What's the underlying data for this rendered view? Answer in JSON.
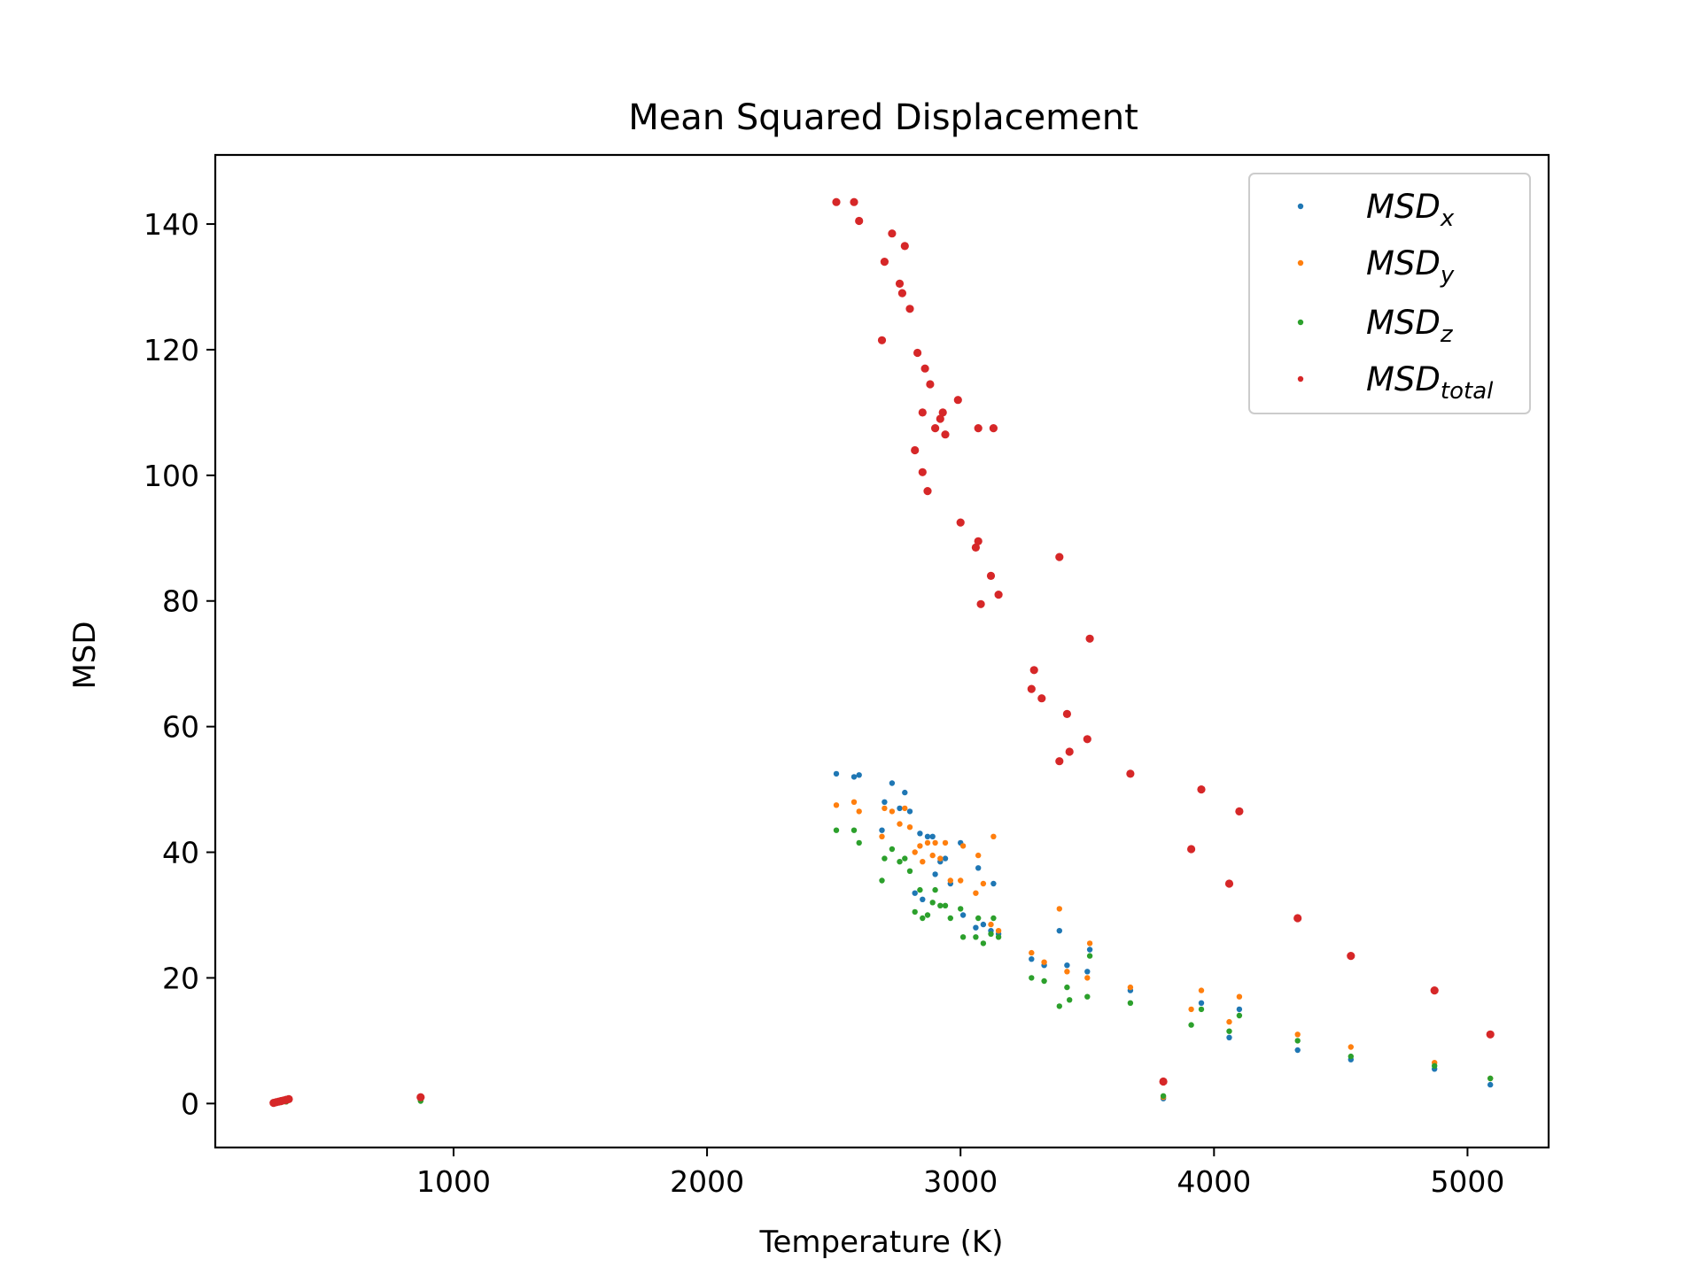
{
  "chart_data": {
    "type": "scatter",
    "title": "Mean Squared Displacement",
    "xlabel": "Temperature (K)",
    "ylabel": "MSD",
    "xlim": [
      60,
      5320
    ],
    "ylim": [
      -7,
      151
    ],
    "xticks": [
      1000,
      2000,
      3000,
      4000,
      5000
    ],
    "yticks": [
      0,
      20,
      40,
      60,
      80,
      100,
      120,
      140
    ],
    "grid": false,
    "legend_position": "top-right",
    "series": [
      {
        "name": "MSD_x",
        "legend_main": "MSD",
        "legend_sub": "x",
        "color": "#1f77b4",
        "points": [
          [
            300,
            0.1
          ],
          [
            320,
            0.2
          ],
          [
            340,
            0.3
          ],
          [
            870,
            0.5
          ],
          [
            2510,
            52.5
          ],
          [
            2580,
            52
          ],
          [
            2600,
            52.3
          ],
          [
            2690,
            43.5
          ],
          [
            2700,
            48
          ],
          [
            2730,
            51
          ],
          [
            2760,
            47
          ],
          [
            2780,
            49.5
          ],
          [
            2800,
            46.5
          ],
          [
            2820,
            33.5
          ],
          [
            2840,
            43
          ],
          [
            2850,
            32.5
          ],
          [
            2870,
            42.5
          ],
          [
            2890,
            42.5
          ],
          [
            2900,
            36.5
          ],
          [
            2920,
            38.5
          ],
          [
            2940,
            39
          ],
          [
            2960,
            35
          ],
          [
            3000,
            41.5
          ],
          [
            3010,
            30
          ],
          [
            3060,
            28
          ],
          [
            3070,
            37.5
          ],
          [
            3090,
            28.5
          ],
          [
            3120,
            27.5
          ],
          [
            3130,
            35
          ],
          [
            3150,
            27
          ],
          [
            3280,
            23
          ],
          [
            3330,
            22
          ],
          [
            3390,
            27.5
          ],
          [
            3420,
            22
          ],
          [
            3500,
            21
          ],
          [
            3510,
            24.5
          ],
          [
            3670,
            18
          ],
          [
            3800,
            0.8
          ],
          [
            3950,
            16
          ],
          [
            4060,
            10.5
          ],
          [
            4100,
            15
          ],
          [
            4330,
            8.5
          ],
          [
            4540,
            7
          ],
          [
            4870,
            5.5
          ],
          [
            5090,
            3
          ]
        ]
      },
      {
        "name": "MSD_y",
        "legend_main": "MSD",
        "legend_sub": "y",
        "color": "#ff7f0e",
        "points": [
          [
            300,
            0.1
          ],
          [
            320,
            0.2
          ],
          [
            340,
            0.3
          ],
          [
            870,
            0.5
          ],
          [
            2510,
            47.5
          ],
          [
            2580,
            48
          ],
          [
            2600,
            46.5
          ],
          [
            2690,
            42.5
          ],
          [
            2700,
            47
          ],
          [
            2730,
            46.5
          ],
          [
            2760,
            44.5
          ],
          [
            2780,
            47
          ],
          [
            2800,
            44
          ],
          [
            2820,
            40
          ],
          [
            2840,
            41
          ],
          [
            2850,
            38.5
          ],
          [
            2870,
            41.5
          ],
          [
            2890,
            39.5
          ],
          [
            2900,
            41.5
          ],
          [
            2920,
            39
          ],
          [
            2940,
            41.5
          ],
          [
            2960,
            35.5
          ],
          [
            3000,
            35.5
          ],
          [
            3010,
            41
          ],
          [
            3060,
            33.5
          ],
          [
            3070,
            39.5
          ],
          [
            3090,
            35
          ],
          [
            3120,
            28.5
          ],
          [
            3130,
            42.5
          ],
          [
            3150,
            27.5
          ],
          [
            3280,
            24
          ],
          [
            3330,
            22.5
          ],
          [
            3390,
            31
          ],
          [
            3420,
            21
          ],
          [
            3500,
            20
          ],
          [
            3510,
            25.5
          ],
          [
            3670,
            18.5
          ],
          [
            3800,
            1
          ],
          [
            3910,
            15
          ],
          [
            3950,
            18
          ],
          [
            4060,
            13
          ],
          [
            4100,
            17
          ],
          [
            4330,
            11
          ],
          [
            4540,
            9
          ],
          [
            4870,
            6.5
          ],
          [
            5090,
            4
          ]
        ]
      },
      {
        "name": "MSD_z",
        "legend_main": "MSD",
        "legend_sub": "z",
        "color": "#2ca02c",
        "points": [
          [
            300,
            0.1
          ],
          [
            320,
            0.2
          ],
          [
            340,
            0.3
          ],
          [
            870,
            0.4
          ],
          [
            2510,
            43.5
          ],
          [
            2580,
            43.5
          ],
          [
            2600,
            41.5
          ],
          [
            2690,
            35.5
          ],
          [
            2700,
            39
          ],
          [
            2730,
            40.5
          ],
          [
            2760,
            38.5
          ],
          [
            2780,
            39
          ],
          [
            2800,
            37
          ],
          [
            2820,
            30.5
          ],
          [
            2840,
            34
          ],
          [
            2850,
            29.5
          ],
          [
            2870,
            30
          ],
          [
            2890,
            32
          ],
          [
            2900,
            34
          ],
          [
            2920,
            31.5
          ],
          [
            2940,
            31.5
          ],
          [
            2960,
            29.5
          ],
          [
            3000,
            31
          ],
          [
            3010,
            26.5
          ],
          [
            3060,
            26.5
          ],
          [
            3070,
            29.5
          ],
          [
            3090,
            25.5
          ],
          [
            3120,
            27
          ],
          [
            3130,
            29.5
          ],
          [
            3150,
            26.5
          ],
          [
            3280,
            20
          ],
          [
            3330,
            19.5
          ],
          [
            3390,
            15.5
          ],
          [
            3420,
            18.5
          ],
          [
            3430,
            16.5
          ],
          [
            3500,
            17
          ],
          [
            3510,
            23.5
          ],
          [
            3670,
            16
          ],
          [
            3800,
            1.2
          ],
          [
            3910,
            12.5
          ],
          [
            3950,
            15
          ],
          [
            4060,
            11.5
          ],
          [
            4100,
            14
          ],
          [
            4330,
            10
          ],
          [
            4540,
            7.5
          ],
          [
            4870,
            6
          ],
          [
            5090,
            4
          ]
        ]
      },
      {
        "name": "MSD_total",
        "legend_main": "MSD",
        "legend_sub": "total",
        "color": "#d62728",
        "points": [
          [
            290,
            0.1
          ],
          [
            300,
            0.2
          ],
          [
            310,
            0.3
          ],
          [
            320,
            0.4
          ],
          [
            330,
            0.5
          ],
          [
            340,
            0.6
          ],
          [
            350,
            0.7
          ],
          [
            870,
            1
          ],
          [
            2510,
            143.5
          ],
          [
            2580,
            143.5
          ],
          [
            2600,
            140.5
          ],
          [
            2690,
            121.5
          ],
          [
            2700,
            134
          ],
          [
            2730,
            138.5
          ],
          [
            2760,
            130.5
          ],
          [
            2770,
            129
          ],
          [
            2780,
            136.5
          ],
          [
            2800,
            126.5
          ],
          [
            2820,
            104
          ],
          [
            2830,
            119.5
          ],
          [
            2850,
            110
          ],
          [
            2850,
            100.5
          ],
          [
            2860,
            117
          ],
          [
            2870,
            97.5
          ],
          [
            2880,
            114.5
          ],
          [
            2900,
            107.5
          ],
          [
            2920,
            109
          ],
          [
            2930,
            110
          ],
          [
            2940,
            106.5
          ],
          [
            2990,
            112
          ],
          [
            3000,
            92.5
          ],
          [
            3060,
            88.5
          ],
          [
            3070,
            107.5
          ],
          [
            3070,
            89.5
          ],
          [
            3080,
            79.5
          ],
          [
            3120,
            84
          ],
          [
            3130,
            107.5
          ],
          [
            3150,
            81
          ],
          [
            3280,
            66
          ],
          [
            3290,
            69
          ],
          [
            3320,
            64.5
          ],
          [
            3390,
            54.5
          ],
          [
            3390,
            87
          ],
          [
            3420,
            62
          ],
          [
            3430,
            56
          ],
          [
            3500,
            58
          ],
          [
            3510,
            74
          ],
          [
            3670,
            52.5
          ],
          [
            3800,
            3.5
          ],
          [
            3910,
            40.5
          ],
          [
            3950,
            50
          ],
          [
            4060,
            35
          ],
          [
            4100,
            46.5
          ],
          [
            4330,
            29.5
          ],
          [
            4540,
            23.5
          ],
          [
            4870,
            18
          ],
          [
            5090,
            11
          ]
        ]
      }
    ]
  }
}
